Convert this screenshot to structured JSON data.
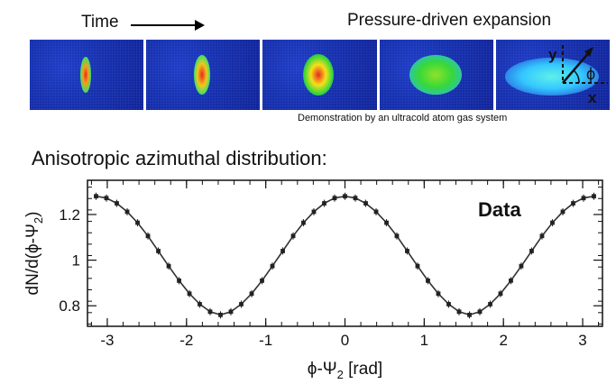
{
  "header": {
    "time_label": "Time",
    "pressure_label": "Pressure-driven expansion",
    "demo_caption": "Demonstration by an ultracold atom gas system",
    "inset_axis_y": "y",
    "inset_axis_x": "x",
    "inset_angle": "ϕ"
  },
  "subtitle": "Anisotropic azimuthal distribution:",
  "colors": {
    "cold_blue": "#1530b0",
    "cloud_red": "#e8281e",
    "cloud_yellow": "#f5e01a",
    "cloud_green": "#36d83a",
    "cloud_cyan": "#34c8ff"
  },
  "chart_data": {
    "type": "scatter",
    "title": "",
    "legend_text": "Data",
    "xlabel": "ϕ-Ψ₂ [rad]",
    "ylabel": "dN/d(ϕ-Ψ₂)",
    "xlim": [
      -3.25,
      3.25
    ],
    "ylim": [
      0.71,
      1.35
    ],
    "xticks": [
      -3,
      -2,
      -1,
      0,
      1,
      2,
      3
    ],
    "yticks": [
      0.8,
      1,
      1.2
    ],
    "xtick_labels": [
      "-3",
      "-2",
      "-1",
      "0",
      "1",
      "2",
      "3"
    ],
    "ytick_labels": [
      "0.8",
      "1",
      "1.2"
    ],
    "series": [
      {
        "name": "Data",
        "x": [
          -3.142,
          -3.011,
          -2.88,
          -2.749,
          -2.618,
          -2.487,
          -2.356,
          -2.225,
          -2.094,
          -1.963,
          -1.833,
          -1.702,
          -1.571,
          -1.44,
          -1.309,
          -1.178,
          -1.047,
          -0.916,
          -0.785,
          -0.654,
          -0.524,
          -0.393,
          -0.262,
          -0.131,
          0.0,
          0.131,
          0.262,
          0.393,
          0.524,
          0.654,
          0.785,
          0.916,
          1.047,
          1.178,
          1.309,
          1.44,
          1.571,
          1.702,
          1.833,
          1.963,
          2.094,
          2.225,
          2.356,
          2.487,
          2.618,
          2.749,
          2.88,
          3.011,
          3.142
        ],
        "y": [
          1.28,
          1.272,
          1.249,
          1.212,
          1.164,
          1.106,
          1.04,
          0.974,
          0.91,
          0.853,
          0.807,
          0.774,
          0.76,
          0.774,
          0.807,
          0.853,
          0.91,
          0.974,
          1.04,
          1.106,
          1.164,
          1.212,
          1.249,
          1.272,
          1.28,
          1.272,
          1.249,
          1.212,
          1.164,
          1.106,
          1.04,
          0.974,
          0.91,
          0.853,
          0.807,
          0.774,
          0.76,
          0.774,
          0.807,
          0.853,
          0.91,
          0.974,
          1.04,
          1.106,
          1.164,
          1.212,
          1.249,
          1.272,
          1.28
        ]
      }
    ],
    "grid": false,
    "legend_position": "top-right"
  }
}
